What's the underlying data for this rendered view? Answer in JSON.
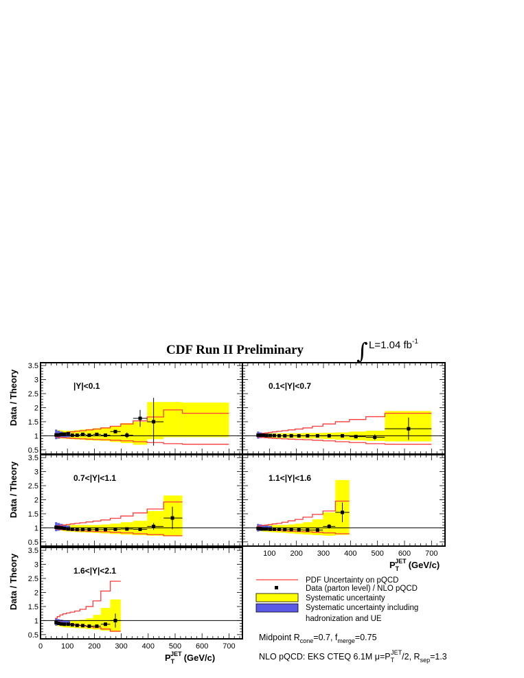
{
  "title": "CDF Run II Preliminary",
  "luminosity": {
    "symbol": "∫",
    "text": "L=1.04 fb",
    "exponent": "-1"
  },
  "ylabel": "Data / Theory",
  "xlabel": {
    "main": "P",
    "sub": "T",
    "sup": "JET",
    "unit": "(GeV/c)"
  },
  "colors": {
    "pdf_band": "#ff3a3a",
    "systematic": "#ffff00",
    "hadronization": "#5a5ae6",
    "data": "#000000"
  },
  "legend": {
    "pdf": "PDF Uncertainty on pQCD",
    "data": "Data (parton level) / NLO pQCD",
    "syst": "Systematic uncertainty",
    "had_line1": "Systematic uncertainty including",
    "had_line2": "hadronization and UE"
  },
  "notes": {
    "midpoint": {
      "a": "Midpoint  R",
      "a_sub": "cone",
      "b": "=0.7,  f",
      "b_sub": "merge",
      "c": "=0.75"
    },
    "nlo": {
      "a": "NLO pQCD: EKS CTEQ 6.1M μ=P",
      "a_sub": "T",
      "a_sup": "JET",
      "b": "/2, R",
      "b_sub": "sep",
      "c": "=1.3"
    }
  },
  "chart_data": [
    {
      "type": "scatter",
      "label": "|Y|<0.1",
      "xlim": [
        0,
        750
      ],
      "ylim": [
        0.35,
        3.6
      ],
      "y_ticks": [
        "0.5",
        "1",
        "1.5",
        "2",
        "2.5",
        "3",
        "3.5"
      ],
      "x_ticks": [],
      "edges": [
        54,
        62,
        72,
        83,
        96,
        110,
        127,
        146,
        169,
        195,
        224,
        259,
        298,
        344,
        396,
        457,
        527,
        700
      ],
      "values": [
        1.03,
        1.03,
        1.05,
        1.06,
        1.08,
        1.02,
        1.02,
        1.05,
        1.02,
        1.05,
        1.02,
        1.15,
        1.02,
        1.62,
        1.5,
        null,
        null
      ],
      "points_x": [
        58,
        67,
        77,
        89,
        103,
        118,
        136,
        157,
        181,
        209,
        241,
        278,
        321,
        370,
        420,
        490,
        615
      ],
      "points_y": [
        1.03,
        1.03,
        1.05,
        1.06,
        1.08,
        1.02,
        1.02,
        1.05,
        1.02,
        1.05,
        1.02,
        1.15,
        1.02,
        1.62,
        1.5,
        null,
        null
      ],
      "stat_err": [
        0.02,
        0.02,
        0.02,
        0.02,
        0.02,
        0.02,
        0.02,
        0.03,
        0.03,
        0.04,
        0.04,
        0.06,
        0.1,
        0.3,
        0.85,
        null,
        null
      ],
      "syst_low": [
        0.88,
        0.89,
        0.9,
        0.9,
        0.89,
        0.88,
        0.87,
        0.86,
        0.84,
        0.83,
        0.82,
        0.78,
        0.74,
        0.68,
        0.88,
        0.95,
        0.95
      ],
      "syst_high": [
        1.2,
        1.2,
        1.2,
        1.18,
        1.18,
        1.18,
        1.2,
        1.22,
        1.24,
        1.27,
        1.3,
        1.35,
        1.45,
        1.5,
        2.2,
        2.2,
        2.18
      ],
      "had_low": [
        0.88,
        0.9,
        0.92,
        0.94,
        0.95
      ],
      "had_high": [
        1.22,
        1.18,
        1.15,
        1.12,
        1.1
      ],
      "pdf_low": [
        0.97,
        0.95,
        0.94,
        0.93,
        0.92,
        0.91,
        0.9,
        0.89,
        0.88,
        0.87,
        0.86,
        0.84,
        0.82,
        0.79,
        0.76,
        0.72,
        0.7
      ],
      "pdf_high": [
        1.05,
        1.07,
        1.09,
        1.1,
        1.12,
        1.14,
        1.16,
        1.18,
        1.21,
        1.24,
        1.28,
        1.34,
        1.42,
        1.53,
        1.67,
        1.92,
        1.8
      ]
    },
    {
      "type": "scatter",
      "label": "0.1<|Y|<0.7",
      "xlim": [
        0,
        750
      ],
      "ylim": [
        0.35,
        3.6
      ],
      "y_ticks": [],
      "x_ticks": [],
      "edges": [
        54,
        62,
        72,
        83,
        96,
        110,
        127,
        146,
        169,
        195,
        224,
        259,
        298,
        344,
        396,
        457,
        527,
        700
      ],
      "points_x": [
        58,
        67,
        77,
        89,
        103,
        118,
        136,
        157,
        181,
        209,
        241,
        278,
        321,
        370,
        420,
        490,
        615
      ],
      "points_y": [
        1.02,
        1.02,
        1.02,
        1.01,
        1.01,
        1.01,
        1.0,
        1.0,
        1.0,
        1.0,
        1.0,
        1.0,
        1.0,
        1.0,
        0.97,
        0.95,
        1.25
      ],
      "stat_err": [
        0.02,
        0.02,
        0.02,
        0.02,
        0.02,
        0.02,
        0.02,
        0.02,
        0.02,
        0.02,
        0.02,
        0.02,
        0.03,
        0.04,
        0.05,
        0.1,
        0.4
      ],
      "syst_low": [
        0.92,
        0.93,
        0.93,
        0.93,
        0.93,
        0.93,
        0.92,
        0.92,
        0.92,
        0.91,
        0.9,
        0.9,
        0.88,
        0.86,
        0.84,
        0.82,
        0.8
      ],
      "syst_high": [
        1.1,
        1.1,
        1.1,
        1.09,
        1.09,
        1.09,
        1.09,
        1.09,
        1.09,
        1.09,
        1.1,
        1.1,
        1.11,
        1.12,
        1.15,
        1.18,
        1.88
      ],
      "had_low": [
        0.9,
        0.92,
        0.93,
        0.94,
        0.95
      ],
      "had_high": [
        1.15,
        1.12,
        1.1,
        1.08,
        1.07
      ],
      "pdf_low": [
        0.97,
        0.95,
        0.94,
        0.93,
        0.92,
        0.91,
        0.9,
        0.89,
        0.88,
        0.87,
        0.86,
        0.84,
        0.82,
        0.79,
        0.76,
        0.72,
        0.7
      ],
      "pdf_high": [
        1.05,
        1.07,
        1.09,
        1.1,
        1.12,
        1.14,
        1.16,
        1.18,
        1.21,
        1.24,
        1.28,
        1.34,
        1.42,
        1.5,
        1.58,
        1.68,
        1.8
      ]
    },
    {
      "type": "scatter",
      "label": "0.7<|Y|<1.1",
      "xlim": [
        0,
        750
      ],
      "ylim": [
        0.35,
        3.6
      ],
      "y_ticks": [
        "0.5",
        "1",
        "1.5",
        "2",
        "2.5",
        "3",
        "3.5"
      ],
      "x_ticks": [],
      "edges": [
        54,
        62,
        72,
        83,
        96,
        110,
        127,
        146,
        169,
        195,
        224,
        259,
        298,
        344,
        396,
        457,
        527
      ],
      "points_x": [
        58,
        67,
        77,
        89,
        103,
        118,
        136,
        157,
        181,
        209,
        241,
        278,
        321,
        370,
        420,
        490
      ],
      "points_y": [
        1.02,
        1.01,
        1.0,
        0.98,
        0.96,
        0.95,
        0.94,
        0.94,
        0.94,
        0.94,
        0.94,
        0.95,
        0.96,
        0.95,
        1.05,
        1.35
      ],
      "stat_err": [
        0.02,
        0.02,
        0.02,
        0.02,
        0.02,
        0.02,
        0.02,
        0.02,
        0.03,
        0.03,
        0.04,
        0.05,
        0.05,
        0.06,
        0.12,
        0.4
      ],
      "syst_low": [
        0.9,
        0.9,
        0.9,
        0.88,
        0.87,
        0.86,
        0.85,
        0.84,
        0.83,
        0.82,
        0.8,
        0.78,
        0.76,
        0.74,
        0.72,
        0.7
      ],
      "syst_high": [
        1.15,
        1.14,
        1.13,
        1.12,
        1.1,
        1.1,
        1.1,
        1.1,
        1.1,
        1.1,
        1.12,
        1.15,
        1.2,
        1.25,
        1.6,
        2.15
      ],
      "had_low": [
        0.88,
        0.9,
        0.92,
        0.93,
        0.94
      ],
      "had_high": [
        1.2,
        1.17,
        1.14,
        1.1,
        1.08
      ],
      "pdf_low": [
        0.97,
        0.95,
        0.94,
        0.93,
        0.92,
        0.91,
        0.9,
        0.89,
        0.88,
        0.87,
        0.86,
        0.84,
        0.82,
        0.79,
        0.76,
        0.72
      ],
      "pdf_high": [
        1.05,
        1.07,
        1.09,
        1.1,
        1.12,
        1.14,
        1.16,
        1.18,
        1.21,
        1.24,
        1.28,
        1.34,
        1.42,
        1.53,
        1.67,
        1.92
      ]
    },
    {
      "type": "scatter",
      "label": "1.1<|Y|<1.6",
      "xlim": [
        0,
        750
      ],
      "ylim": [
        0.35,
        3.6
      ],
      "y_ticks": [],
      "x_ticks": [
        "100",
        "200",
        "300",
        "400",
        "500",
        "600",
        "700"
      ],
      "edges": [
        54,
        62,
        72,
        83,
        96,
        110,
        127,
        146,
        169,
        195,
        224,
        259,
        298,
        344,
        396
      ],
      "points_x": [
        58,
        67,
        77,
        89,
        103,
        118,
        136,
        157,
        181,
        209,
        241,
        278,
        321,
        370
      ],
      "points_y": [
        0.98,
        0.97,
        0.96,
        0.96,
        0.95,
        0.95,
        0.95,
        0.94,
        0.94,
        0.93,
        0.92,
        0.92,
        1.05,
        1.55
      ],
      "stat_err": [
        0.02,
        0.02,
        0.02,
        0.02,
        0.02,
        0.02,
        0.02,
        0.02,
        0.03,
        0.03,
        0.04,
        0.05,
        0.08,
        0.35
      ],
      "syst_low": [
        0.88,
        0.88,
        0.87,
        0.86,
        0.85,
        0.84,
        0.83,
        0.82,
        0.8,
        0.78,
        0.76,
        0.74,
        0.72,
        0.75
      ],
      "syst_high": [
        1.1,
        1.1,
        1.1,
        1.1,
        1.1,
        1.1,
        1.1,
        1.1,
        1.12,
        1.15,
        1.2,
        1.3,
        1.55,
        2.7
      ],
      "had_low": [
        0.87,
        0.89,
        0.91,
        0.92,
        0.93
      ],
      "had_high": [
        1.14,
        1.12,
        1.1,
        1.08,
        1.07
      ],
      "pdf_low": [
        0.97,
        0.95,
        0.94,
        0.93,
        0.92,
        0.91,
        0.9,
        0.89,
        0.88,
        0.87,
        0.86,
        0.84,
        0.82,
        0.79
      ],
      "pdf_high": [
        1.05,
        1.07,
        1.09,
        1.1,
        1.12,
        1.14,
        1.16,
        1.2,
        1.25,
        1.3,
        1.38,
        1.48,
        1.6,
        1.95
      ]
    },
    {
      "type": "scatter",
      "label": "1.6<|Y|<2.1",
      "xlim": [
        0,
        750
      ],
      "ylim": [
        0.35,
        3.6
      ],
      "y_ticks": [
        "0.5",
        "1",
        "1.5",
        "2",
        "2.5",
        "3",
        "3.5"
      ],
      "x_ticks": [
        "0",
        "100",
        "200",
        "300",
        "400",
        "500",
        "600",
        "700"
      ],
      "edges": [
        54,
        62,
        72,
        83,
        96,
        110,
        127,
        146,
        169,
        195,
        224,
        259,
        298
      ],
      "points_x": [
        58,
        67,
        77,
        89,
        103,
        118,
        136,
        157,
        181,
        209,
        241,
        278
      ],
      "points_y": [
        0.93,
        0.9,
        0.88,
        0.87,
        0.87,
        0.85,
        0.83,
        0.82,
        0.8,
        0.8,
        0.87,
        1.0
      ],
      "stat_err": [
        0.02,
        0.02,
        0.02,
        0.02,
        0.02,
        0.02,
        0.02,
        0.03,
        0.03,
        0.04,
        0.06,
        0.25
      ],
      "syst_low": [
        0.82,
        0.8,
        0.78,
        0.76,
        0.75,
        0.74,
        0.73,
        0.72,
        0.7,
        0.68,
        0.64,
        0.6
      ],
      "syst_high": [
        1.05,
        1.03,
        1.02,
        1.01,
        1.0,
        1.0,
        1.01,
        1.03,
        1.08,
        1.2,
        1.45,
        1.75
      ],
      "had_low": [
        0.82,
        0.84,
        0.86,
        0.87,
        0.88
      ],
      "had_high": [
        1.08,
        1.05,
        1.03,
        1.01,
        1.0
      ],
      "pdf_low": [
        0.97,
        0.95,
        0.93,
        0.91,
        0.89,
        0.87,
        0.85,
        0.82,
        0.79,
        0.75,
        0.7,
        0.62
      ],
      "pdf_high": [
        1.08,
        1.14,
        1.2,
        1.24,
        1.27,
        1.3,
        1.34,
        1.4,
        1.5,
        1.7,
        2.05,
        2.4
      ]
    }
  ]
}
